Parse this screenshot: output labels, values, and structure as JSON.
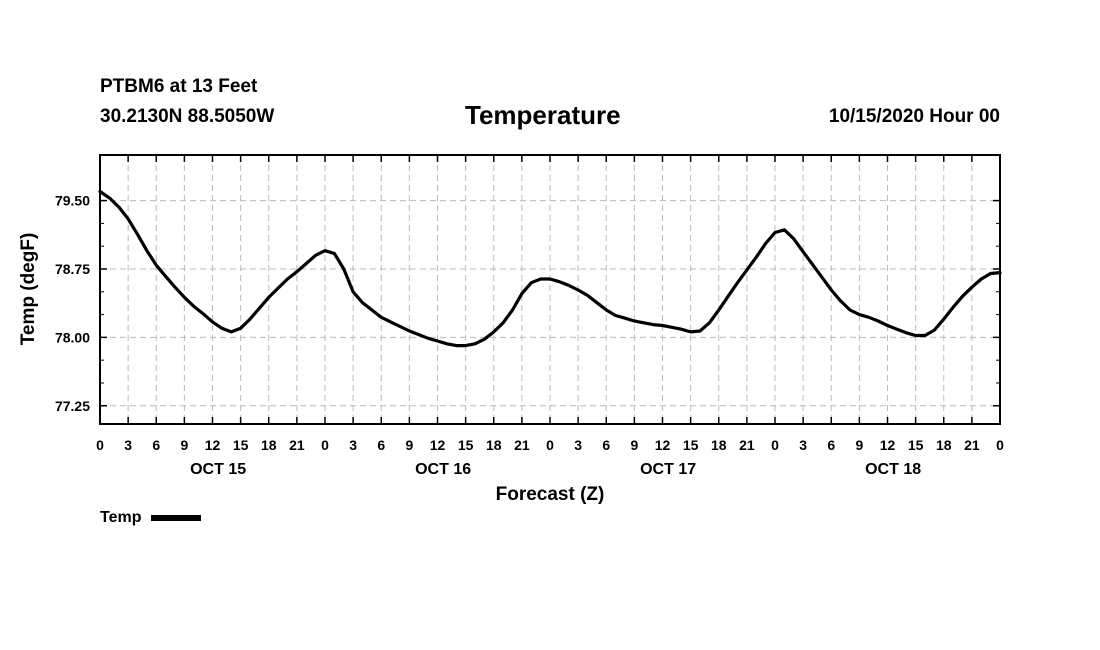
{
  "header": {
    "station": "PTBM6 at 13 Feet",
    "coords": "30.2130N 88.5050W",
    "title": "Temperature",
    "datetime": "10/15/2020 Hour 00"
  },
  "legend": {
    "label": "Temp"
  },
  "chart_data": {
    "type": "line",
    "title": "Temperature",
    "xlabel": "Forecast (Z)",
    "ylabel": "Temp (degF)",
    "xlim": [
      0,
      96
    ],
    "ylim": [
      77.05,
      80.0
    ],
    "yticks": [
      77.25,
      78.0,
      78.75,
      79.5
    ],
    "ytick_labels": [
      "77.25",
      "78.00",
      "78.75",
      "79.50"
    ],
    "xticks": [
      0,
      3,
      6,
      9,
      12,
      15,
      18,
      21,
      24,
      27,
      30,
      33,
      36,
      39,
      42,
      45,
      48,
      51,
      54,
      57,
      60,
      63,
      66,
      69,
      72,
      75,
      78,
      81,
      84,
      87,
      90,
      93,
      96
    ],
    "xtick_labels": [
      "0",
      "3",
      "6",
      "9",
      "12",
      "15",
      "18",
      "21",
      "0",
      "3",
      "6",
      "9",
      "12",
      "15",
      "18",
      "21",
      "0",
      "3",
      "6",
      "9",
      "12",
      "15",
      "18",
      "21",
      "0",
      "3",
      "6",
      "9",
      "12",
      "15",
      "18",
      "21",
      "0"
    ],
    "day_labels": [
      {
        "x": 12.6,
        "label": "OCT 15"
      },
      {
        "x": 36.6,
        "label": "OCT 16"
      },
      {
        "x": 60.6,
        "label": "OCT 17"
      },
      {
        "x": 84.6,
        "label": "OCT 18"
      }
    ],
    "grid": true,
    "legend": "bottom-left",
    "series": [
      {
        "name": "Temp",
        "x": [
          0,
          1,
          2,
          3,
          4,
          5,
          6,
          7,
          8,
          9,
          10,
          11,
          12,
          13,
          14,
          15,
          16,
          17,
          18,
          19,
          20,
          21,
          22,
          23,
          24,
          25,
          26,
          27,
          28,
          29,
          30,
          31,
          32,
          33,
          34,
          35,
          36,
          37,
          38,
          39,
          40,
          41,
          42,
          43,
          44,
          45,
          46,
          47,
          48,
          49,
          50,
          51,
          52,
          53,
          54,
          55,
          56,
          57,
          58,
          59,
          60,
          61,
          62,
          63,
          64,
          65,
          66,
          67,
          68,
          69,
          70,
          71,
          72,
          73,
          74,
          75,
          76,
          77,
          78,
          79,
          80,
          81,
          82,
          83,
          84,
          85,
          86,
          87,
          88,
          89,
          90,
          91,
          92,
          93,
          94,
          95,
          96
        ],
        "values": [
          79.6,
          79.53,
          79.43,
          79.3,
          79.13,
          78.95,
          78.79,
          78.67,
          78.55,
          78.44,
          78.34,
          78.26,
          78.17,
          78.1,
          78.06,
          78.1,
          78.2,
          78.32,
          78.44,
          78.54,
          78.64,
          78.72,
          78.81,
          78.9,
          78.95,
          78.92,
          78.75,
          78.5,
          78.38,
          78.3,
          78.22,
          78.17,
          78.12,
          78.07,
          78.03,
          77.99,
          77.96,
          77.93,
          77.91,
          77.91,
          77.93,
          77.98,
          78.06,
          78.16,
          78.3,
          78.48,
          78.6,
          78.64,
          78.64,
          78.61,
          78.57,
          78.52,
          78.46,
          78.38,
          78.3,
          78.24,
          78.21,
          78.18,
          78.16,
          78.14,
          78.13,
          78.11,
          78.09,
          78.06,
          78.07,
          78.16,
          78.3,
          78.45,
          78.6,
          78.74,
          78.88,
          79.03,
          79.15,
          79.18,
          79.08,
          78.94,
          78.8,
          78.66,
          78.52,
          78.4,
          78.3,
          78.25,
          78.22,
          78.18,
          78.13,
          78.09,
          78.05,
          78.02,
          78.02,
          78.08,
          78.2,
          78.33,
          78.45,
          78.55,
          78.64,
          78.7,
          78.71
        ]
      }
    ]
  }
}
